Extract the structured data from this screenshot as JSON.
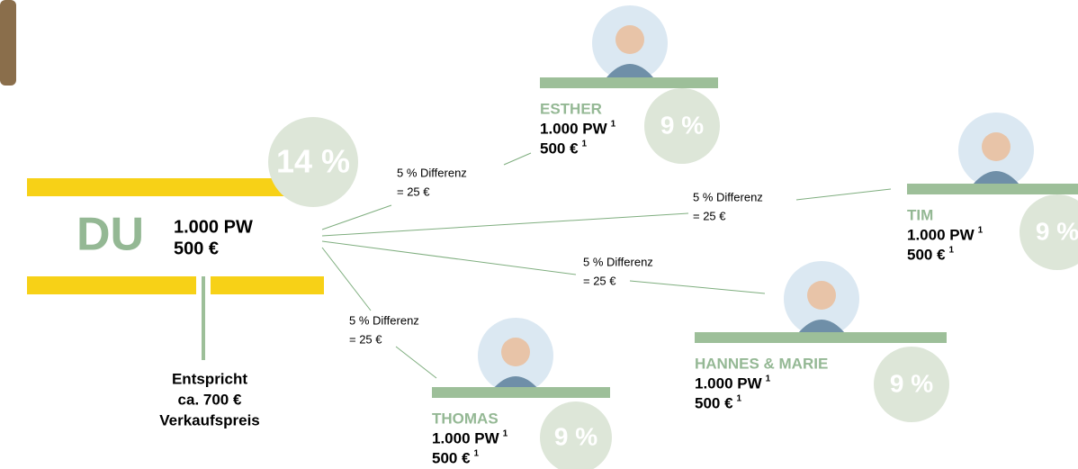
{
  "du": {
    "label": "DU",
    "points": "1.000 PW",
    "price": "500 €",
    "badge": "14 %",
    "note": [
      "Entspricht",
      "ca. 700 €",
      "Verkaufspreis"
    ]
  },
  "edges": [
    {
      "line1": "5 % Differenz",
      "line2": "= 25 €"
    },
    {
      "line1": "5 % Differenz",
      "line2": "= 25 €"
    },
    {
      "line1": "5 % Differenz",
      "line2": "= 25 €"
    },
    {
      "line1": "5 % Differenz",
      "line2": "= 25 €"
    }
  ],
  "nodes": [
    {
      "name": "ESTHER",
      "points": "1.000 PW",
      "price": "500 €",
      "footnote": "1",
      "badge": "9 %"
    },
    {
      "name": "TIM",
      "points": "1.000 PW",
      "price": "500 €",
      "footnote": "1",
      "badge": "9 %"
    },
    {
      "name": "HANNES & MARIE",
      "points": "1.000 PW",
      "price": "500 €",
      "footnote": "1",
      "badge": "9 %"
    },
    {
      "name": "THOMAS",
      "points": "1.000 PW",
      "price": "500 €",
      "footnote": "1",
      "badge": "9 %"
    }
  ]
}
